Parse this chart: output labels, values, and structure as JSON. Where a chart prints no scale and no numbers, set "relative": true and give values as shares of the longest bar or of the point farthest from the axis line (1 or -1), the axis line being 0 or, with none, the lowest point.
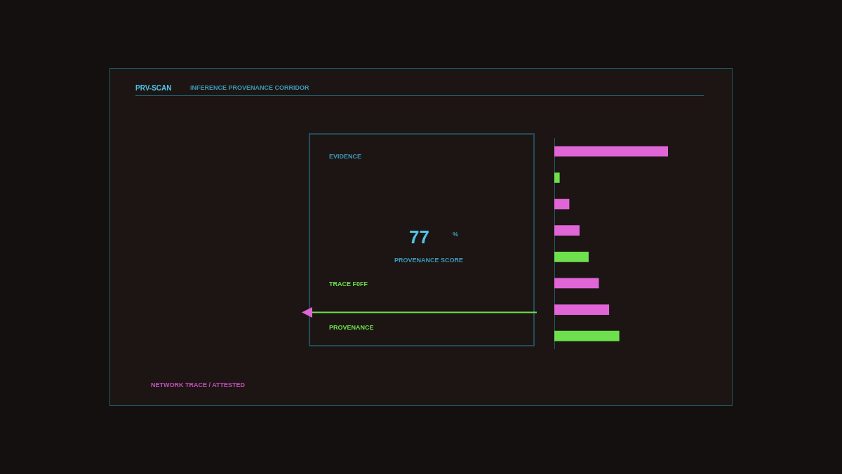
{
  "chart_data": {
    "type": "bar",
    "orientation": "horizontal",
    "relative": true,
    "title": "PRV-SCAN",
    "subtitle": "INFERENCE PROVENANCE CORRIDOR",
    "annotations": [
      "EVIDENCE",
      "77",
      "%",
      "PROVENANCE SCORE",
      "TRACE F0FF",
      "PROVENANCE",
      "NETWORK TRACE / ATTESTED"
    ],
    "categories": [
      null,
      null,
      null,
      null,
      null,
      null,
      null,
      null
    ],
    "values": [
      1,
      0.045,
      0.13,
      0.22,
      0.3,
      0.39,
      0.48,
      0.57
    ],
    "colors": [
      "#e066d8",
      "#6ee04e",
      "#e066d8",
      "#e066d8",
      "#6ee04e",
      "#e066d8",
      "#e066d8",
      "#6ee04e"
    ]
  }
}
